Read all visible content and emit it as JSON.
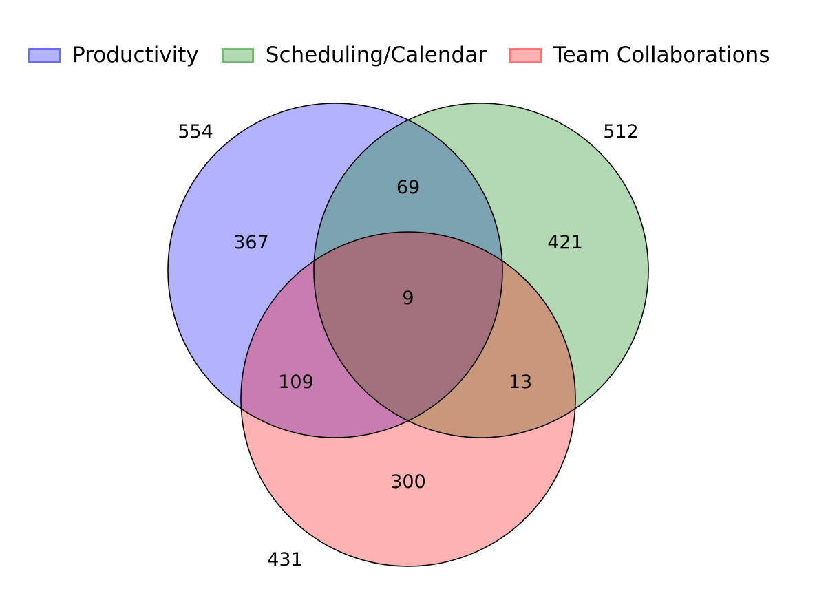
{
  "legend": {
    "items": [
      {
        "label": "Productivity",
        "color": "#0000ff"
      },
      {
        "label": "Scheduling/Calendar",
        "color": "#008000"
      },
      {
        "label": "Team Collaborations",
        "color": "#ff0000"
      }
    ]
  },
  "venn": {
    "set_totals": {
      "productivity": "554",
      "scheduling": "512",
      "team": "431"
    },
    "regions": {
      "productivity_only": "367",
      "scheduling_only": "421",
      "team_only": "300",
      "productivity_scheduling": "69",
      "productivity_team": "109",
      "scheduling_team": "13",
      "all_three": "9"
    }
  }
}
